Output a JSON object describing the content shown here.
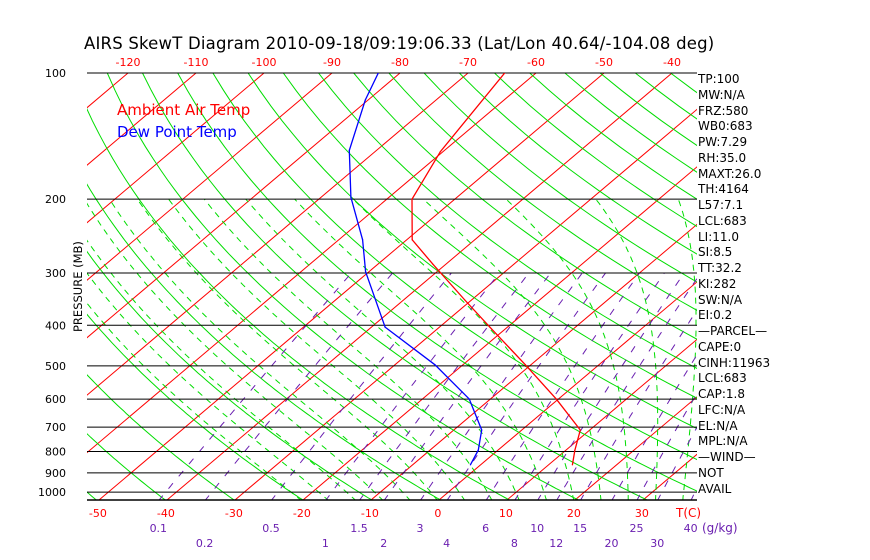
{
  "chart_data": {
    "type": "line",
    "title": "AIRS SkewT Diagram 2010-09-18/09:19:06.33 (Lat/Lon 40.64/-104.08 deg)",
    "ylabel": "PRESSURE (MB)",
    "xlabel": "T(C)",
    "mixing_ratio_label": "(g/kg)",
    "ylim": [
      1050,
      100
    ],
    "y_ticks": [
      "100",
      "200",
      "300",
      "400",
      "500",
      "600",
      "700",
      "800",
      "900",
      "1000"
    ],
    "x_ticks_bottom": [
      "-50",
      "-40",
      "-30",
      "-20",
      "-10",
      "0",
      "10",
      "20",
      "30"
    ],
    "x_ticks_top": [
      "-120",
      "-110",
      "-100",
      "-90",
      "-80",
      "-70",
      "-60",
      "-50",
      "-40"
    ],
    "mixing_ratio_ticks": [
      "0.1",
      "0.2",
      "0.5",
      "1",
      "1.5",
      "2",
      "3",
      "4",
      "6",
      "8",
      "10",
      "12",
      "15",
      "20",
      "25",
      "30",
      "40"
    ],
    "legend": [
      "Ambient Air Temp",
      "Dew Point Temp"
    ],
    "legend_position": "top-left",
    "series": [
      {
        "name": "Ambient Air Temp",
        "color": "#ff0000",
        "pressure": [
          100,
          154,
          200,
          250,
          286,
          348,
          404,
          497,
          600,
          711,
          794,
          861
        ],
        "temperature": [
          -64.6,
          -60.4,
          -56.3,
          -49.2,
          -41.9,
          -31.0,
          -22.6,
          -10.8,
          -0.3,
          8.6,
          11.3,
          13.5
        ]
      },
      {
        "name": "Dew Point Temp",
        "color": "#0000ff",
        "pressure": [
          100,
          116,
          153,
          198,
          250,
          298,
          404,
          497,
          600,
          711,
          794,
          861
        ],
        "temperature": [
          -83.2,
          -80.4,
          -74.0,
          -65.6,
          -56.5,
          -50.5,
          -38.0,
          -24.1,
          -13.1,
          -5.9,
          -2.9,
          -1.5
        ]
      }
    ]
  },
  "stats": [
    "TP:100",
    "MW:N/A",
    "FRZ:580",
    "WB0:683",
    "PW:7.29",
    "RH:35.0",
    "MAXT:26.0",
    "TH:4164",
    "L57:7.1",
    "LCL:683",
    "LI:11.0",
    "SI:8.5",
    "TT:32.2",
    "KI:282",
    "SW:N/A",
    "EI:0.2",
    "—PARCEL—",
    "CAPE:0",
    "CINH:11963",
    "LCL:683",
    "CAP:1.8",
    "LFC:N/A",
    "EL:N/A",
    "MPL:N/A",
    "—WIND—",
    "NOT",
    "AVAIL"
  ],
  "colors": {
    "isotherm": "#ff0000",
    "dry_adiabat": "#00dd00",
    "moist_adiabat": "#00dd00",
    "mixing_ratio": "#6a1fb0",
    "isobar": "#000000"
  }
}
